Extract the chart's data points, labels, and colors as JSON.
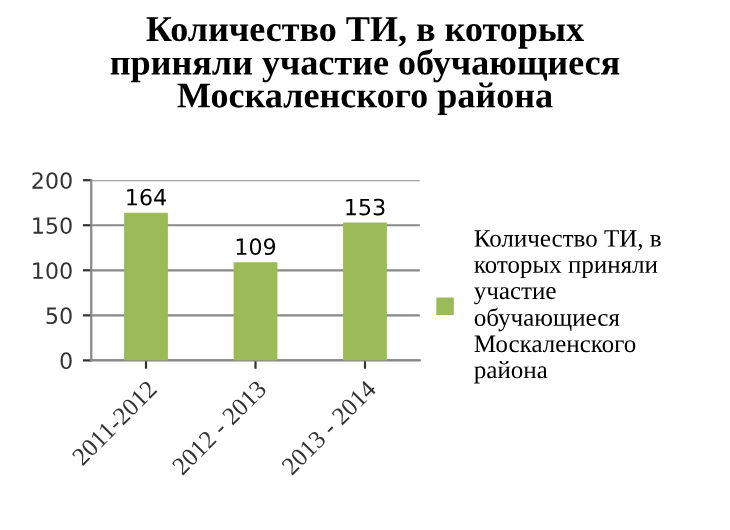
{
  "chart_data": {
    "type": "bar",
    "title": "Количество ТИ, в которых\nприняли участие обучающиеся\nМоскаленского района",
    "categories": [
      "2011-2012",
      "2012 - 2013",
      "2013 - 2014"
    ],
    "series": [
      {
        "name": "Количество ТИ, в\nкоторых приняли\nучастие\nобучающиеся\nМоскаленского\nрайона",
        "color": "#9bbb59",
        "values": [
          164,
          109,
          153
        ]
      }
    ],
    "ylim": [
      0,
      200
    ],
    "yticks": [
      0,
      50,
      100,
      150,
      200
    ],
    "grid": "y",
    "legend": "right",
    "data_labels": true
  }
}
